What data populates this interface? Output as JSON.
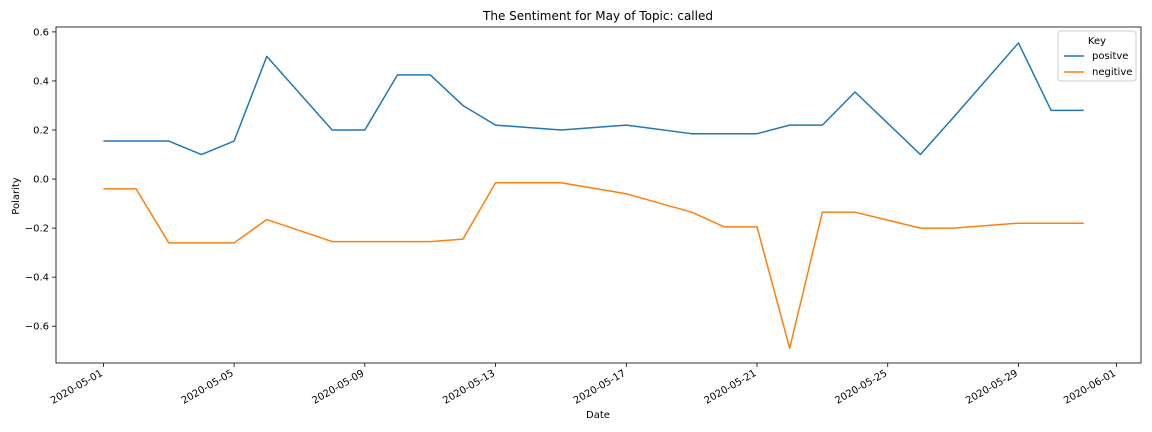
{
  "chart_data": {
    "type": "line",
    "title": "The Sentiment for May of Topic: called",
    "xlabel": "Date",
    "ylabel": "Polarity",
    "xlim": [
      "2020-04-29",
      "2020-06-01"
    ],
    "ylim": [
      -0.75,
      0.62
    ],
    "x_ticks": [
      "2020-05-01",
      "2020-05-05",
      "2020-05-09",
      "2020-05-13",
      "2020-05-17",
      "2020-05-21",
      "2020-05-25",
      "2020-05-29",
      "2020-06-01"
    ],
    "y_ticks": [
      -0.6,
      -0.4,
      -0.2,
      0.0,
      0.2,
      0.4,
      0.6
    ],
    "y_tick_labels": [
      "−0.6",
      "−0.4",
      "−0.2",
      "0.0",
      "0.2",
      "0.4",
      "0.6"
    ],
    "grid": false,
    "legend": {
      "title": "Key",
      "placement": "top-right"
    },
    "series": [
      {
        "name": "positve",
        "color": "#1f77b4",
        "x": [
          "2020-05-01",
          "2020-05-02",
          "2020-05-03",
          "2020-05-04",
          "2020-05-05",
          "2020-05-06",
          "2020-05-08",
          "2020-05-09",
          "2020-05-10",
          "2020-05-11",
          "2020-05-12",
          "2020-05-13",
          "2020-05-15",
          "2020-05-17",
          "2020-05-19",
          "2020-05-21",
          "2020-05-22",
          "2020-05-23",
          "2020-05-24",
          "2020-05-26",
          "2020-05-27",
          "2020-05-29",
          "2020-05-30",
          "2020-05-31"
        ],
        "values": [
          0.155,
          0.155,
          0.155,
          0.1,
          0.155,
          0.5,
          0.2,
          0.2,
          0.425,
          0.425,
          0.3,
          0.22,
          0.2,
          0.22,
          0.185,
          0.185,
          0.22,
          0.22,
          0.355,
          0.1,
          0.25,
          0.555,
          0.28,
          0.28
        ]
      },
      {
        "name": "negitive",
        "color": "#ff7f0e",
        "x": [
          "2020-05-01",
          "2020-05-02",
          "2020-05-03",
          "2020-05-04",
          "2020-05-05",
          "2020-05-06",
          "2020-05-08",
          "2020-05-09",
          "2020-05-10",
          "2020-05-11",
          "2020-05-12",
          "2020-05-13",
          "2020-05-15",
          "2020-05-17",
          "2020-05-19",
          "2020-05-20",
          "2020-05-21",
          "2020-05-22",
          "2020-05-23",
          "2020-05-24",
          "2020-05-26",
          "2020-05-27",
          "2020-05-29",
          "2020-05-30",
          "2020-05-31"
        ],
        "values": [
          -0.04,
          -0.04,
          -0.26,
          -0.26,
          -0.26,
          -0.165,
          -0.255,
          -0.255,
          -0.255,
          -0.255,
          -0.245,
          -0.015,
          -0.015,
          -0.06,
          -0.135,
          -0.195,
          -0.195,
          -0.69,
          -0.135,
          -0.135,
          -0.2,
          -0.2,
          -0.18,
          -0.18,
          -0.18
        ]
      }
    ]
  }
}
